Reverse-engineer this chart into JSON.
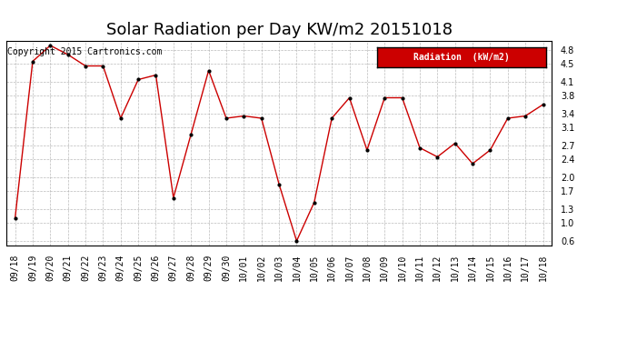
{
  "title": "Solar Radiation per Day KW/m2 20151018",
  "copyright_text": "Copyright 2015 Cartronics.com",
  "legend_label": "Radiation  (kW/m2)",
  "x_labels": [
    "09/18",
    "09/19",
    "09/20",
    "09/21",
    "09/22",
    "09/23",
    "09/24",
    "09/25",
    "09/26",
    "09/27",
    "09/28",
    "09/29",
    "09/30",
    "10/01",
    "10/02",
    "10/03",
    "10/04",
    "10/05",
    "10/06",
    "10/07",
    "10/08",
    "10/09",
    "10/10",
    "10/11",
    "10/12",
    "10/13",
    "10/14",
    "10/15",
    "10/16",
    "10/17",
    "10/18"
  ],
  "y_values": [
    1.1,
    4.55,
    4.9,
    4.7,
    4.45,
    4.45,
    3.3,
    4.15,
    4.25,
    1.55,
    2.95,
    4.35,
    3.3,
    3.35,
    3.3,
    1.85,
    0.6,
    1.45,
    3.3,
    3.75,
    2.6,
    3.75,
    3.75,
    2.65,
    2.45,
    2.75,
    2.3,
    2.6,
    3.3,
    3.35,
    3.6
  ],
  "line_color": "#cc0000",
  "marker_color": "#000000",
  "background_color": "#ffffff",
  "grid_color": "#aaaaaa",
  "ylim": [
    0.5,
    5.0
  ],
  "yticks": [
    0.6,
    1.0,
    1.3,
    1.7,
    2.0,
    2.4,
    2.7,
    3.1,
    3.4,
    3.8,
    4.1,
    4.5,
    4.8
  ],
  "legend_bg": "#cc0000",
  "legend_text_color": "#ffffff",
  "title_fontsize": 13,
  "tick_fontsize": 7,
  "copyright_fontsize": 7,
  "copyright_color": "#000000"
}
